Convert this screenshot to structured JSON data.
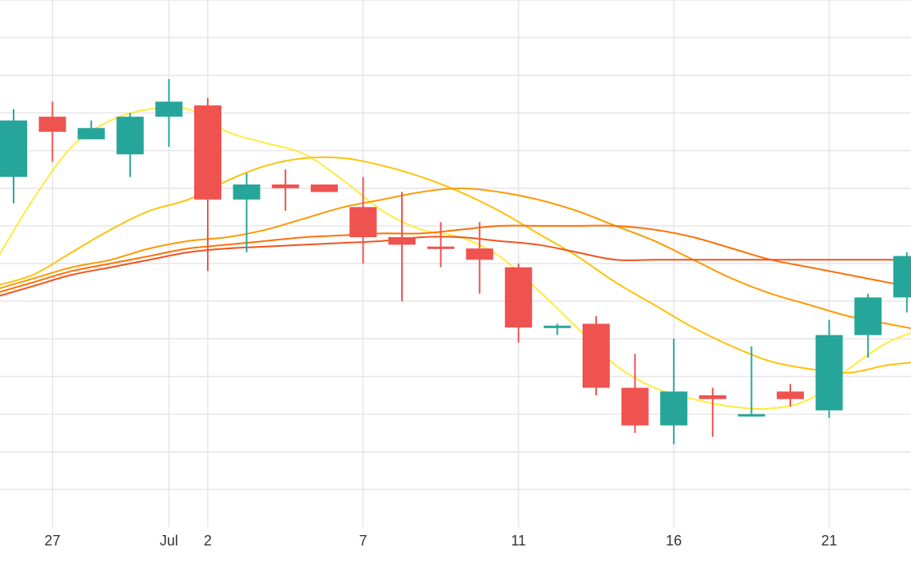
{
  "chart_data": {
    "type": "candlestick",
    "x_axis": {
      "ticks": [
        {
          "label": "27",
          "index": 1
        },
        {
          "label": "Jul",
          "index": 4
        },
        {
          "label": "2",
          "index": 5
        },
        {
          "label": "7",
          "index": 9
        },
        {
          "label": "11",
          "index": 13
        },
        {
          "label": "16",
          "index": 17
        },
        {
          "label": "21",
          "index": 21
        }
      ]
    },
    "y_axis": {
      "range": [
        0,
        14
      ],
      "gridlines": [
        1,
        2,
        3,
        4,
        5,
        6,
        7,
        8,
        9,
        10,
        11,
        12,
        13,
        14
      ]
    },
    "grid": true,
    "colors": {
      "up": "#26a69a",
      "down": "#ef5350",
      "grid": "#e6e6e6",
      "text": "#333333"
    },
    "candles": [
      {
        "i": 0,
        "open": 9.3,
        "high": 11.1,
        "low": 8.6,
        "close": 10.8
      },
      {
        "i": 1,
        "open": 10.9,
        "high": 11.3,
        "low": 9.7,
        "close": 10.5
      },
      {
        "i": 2,
        "open": 10.3,
        "high": 10.8,
        "low": 10.3,
        "close": 10.6
      },
      {
        "i": 3,
        "open": 9.9,
        "high": 11.0,
        "low": 9.3,
        "close": 10.9
      },
      {
        "i": 4,
        "open": 10.9,
        "high": 11.9,
        "low": 10.1,
        "close": 11.3
      },
      {
        "i": 5,
        "open": 11.2,
        "high": 11.4,
        "low": 6.8,
        "close": 8.7
      },
      {
        "i": 6,
        "open": 8.7,
        "high": 9.4,
        "low": 7.3,
        "close": 9.1
      },
      {
        "i": 7,
        "open": 9.1,
        "high": 9.5,
        "low": 8.4,
        "close": 9.0
      },
      {
        "i": 8,
        "open": 9.1,
        "high": 9.1,
        "low": 8.9,
        "close": 8.9
      },
      {
        "i": 9,
        "open": 8.5,
        "high": 9.3,
        "low": 7.0,
        "close": 7.7
      },
      {
        "i": 10,
        "open": 7.7,
        "high": 8.9,
        "low": 6.0,
        "close": 7.5
      },
      {
        "i": 11,
        "open": 7.45,
        "high": 8.1,
        "low": 6.9,
        "close": 7.4
      },
      {
        "i": 12,
        "open": 7.4,
        "high": 8.1,
        "low": 6.2,
        "close": 7.1
      },
      {
        "i": 13,
        "open": 6.9,
        "high": 7.0,
        "low": 4.9,
        "close": 5.3
      },
      {
        "i": 14,
        "open": 5.3,
        "high": 5.4,
        "low": 5.1,
        "close": 5.35
      },
      {
        "i": 15,
        "open": 5.4,
        "high": 5.6,
        "low": 3.5,
        "close": 3.7
      },
      {
        "i": 16,
        "open": 3.7,
        "high": 4.6,
        "low": 2.5,
        "close": 2.7
      },
      {
        "i": 17,
        "open": 2.7,
        "high": 5.0,
        "low": 2.2,
        "close": 3.6
      },
      {
        "i": 18,
        "open": 3.5,
        "high": 3.7,
        "low": 2.4,
        "close": 3.4
      },
      {
        "i": 19,
        "open": 3.0,
        "high": 4.8,
        "low": 3.0,
        "close": 3.0
      },
      {
        "i": 20,
        "open": 3.6,
        "high": 3.8,
        "low": 3.2,
        "close": 3.4
      },
      {
        "i": 21,
        "open": 3.1,
        "high": 5.5,
        "low": 2.9,
        "close": 5.1
      },
      {
        "i": 22,
        "open": 5.1,
        "high": 6.2,
        "low": 4.5,
        "close": 6.1
      },
      {
        "i": 23,
        "open": 6.1,
        "high": 7.3,
        "low": 5.7,
        "close": 7.2
      }
    ],
    "moving_averages": [
      {
        "color": "#ffeb3b",
        "values": [
          {
            "x": -0.5,
            "y": 7.0
          },
          {
            "x": 0.5,
            "y": 8.7
          },
          {
            "x": 1.5,
            "y": 10.1
          },
          {
            "x": 2.5,
            "y": 10.8
          },
          {
            "x": 3.5,
            "y": 11.1
          },
          {
            "x": 4.5,
            "y": 11.1
          },
          {
            "x": 5.5,
            "y": 10.5
          },
          {
            "x": 6.5,
            "y": 10.2
          },
          {
            "x": 7.5,
            "y": 9.9
          },
          {
            "x": 8.5,
            "y": 9.2
          },
          {
            "x": 9.5,
            "y": 8.4
          },
          {
            "x": 10.5,
            "y": 7.9
          },
          {
            "x": 11.5,
            "y": 7.7
          },
          {
            "x": 12.5,
            "y": 7.2
          },
          {
            "x": 13.5,
            "y": 6.3
          },
          {
            "x": 14.5,
            "y": 5.3
          },
          {
            "x": 15.5,
            "y": 4.3
          },
          {
            "x": 16.5,
            "y": 3.7
          },
          {
            "x": 17.5,
            "y": 3.4
          },
          {
            "x": 18.5,
            "y": 3.2
          },
          {
            "x": 19.5,
            "y": 3.15
          },
          {
            "x": 20.5,
            "y": 3.4
          },
          {
            "x": 21.5,
            "y": 4.2
          },
          {
            "x": 22.5,
            "y": 4.9
          },
          {
            "x": 23.5,
            "y": 5.3
          }
        ]
      },
      {
        "color": "#ffc107",
        "values": [
          {
            "x": -0.5,
            "y": 6.4
          },
          {
            "x": 0.5,
            "y": 6.7
          },
          {
            "x": 1.5,
            "y": 7.3
          },
          {
            "x": 2.5,
            "y": 7.9
          },
          {
            "x": 3.5,
            "y": 8.4
          },
          {
            "x": 4.5,
            "y": 8.7
          },
          {
            "x": 5.5,
            "y": 9.2
          },
          {
            "x": 6.5,
            "y": 9.6
          },
          {
            "x": 7.5,
            "y": 9.8
          },
          {
            "x": 8.5,
            "y": 9.8
          },
          {
            "x": 9.5,
            "y": 9.6
          },
          {
            "x": 10.5,
            "y": 9.3
          },
          {
            "x": 11.5,
            "y": 8.9
          },
          {
            "x": 12.5,
            "y": 8.4
          },
          {
            "x": 13.5,
            "y": 7.8
          },
          {
            "x": 14.5,
            "y": 7.2
          },
          {
            "x": 15.5,
            "y": 6.5
          },
          {
            "x": 16.5,
            "y": 5.9
          },
          {
            "x": 17.5,
            "y": 5.3
          },
          {
            "x": 18.5,
            "y": 4.8
          },
          {
            "x": 19.5,
            "y": 4.4
          },
          {
            "x": 20.5,
            "y": 4.2
          },
          {
            "x": 21.5,
            "y": 4.1
          },
          {
            "x": 22.5,
            "y": 4.3
          },
          {
            "x": 23.5,
            "y": 4.4
          }
        ]
      },
      {
        "color": "#ff9800",
        "values": [
          {
            "x": -0.5,
            "y": 6.3
          },
          {
            "x": 0.5,
            "y": 6.6
          },
          {
            "x": 1.5,
            "y": 6.9
          },
          {
            "x": 2.5,
            "y": 7.1
          },
          {
            "x": 3.5,
            "y": 7.4
          },
          {
            "x": 4.5,
            "y": 7.6
          },
          {
            "x": 5.5,
            "y": 7.7
          },
          {
            "x": 6.5,
            "y": 7.9
          },
          {
            "x": 7.5,
            "y": 8.2
          },
          {
            "x": 8.5,
            "y": 8.5
          },
          {
            "x": 9.5,
            "y": 8.7
          },
          {
            "x": 10.5,
            "y": 8.9
          },
          {
            "x": 11.5,
            "y": 9.0
          },
          {
            "x": 12.5,
            "y": 8.9
          },
          {
            "x": 13.5,
            "y": 8.7
          },
          {
            "x": 14.5,
            "y": 8.4
          },
          {
            "x": 15.5,
            "y": 8.0
          },
          {
            "x": 16.5,
            "y": 7.6
          },
          {
            "x": 17.5,
            "y": 7.1
          },
          {
            "x": 18.5,
            "y": 6.6
          },
          {
            "x": 19.5,
            "y": 6.2
          },
          {
            "x": 20.5,
            "y": 5.9
          },
          {
            "x": 21.5,
            "y": 5.6
          },
          {
            "x": 22.5,
            "y": 5.4
          },
          {
            "x": 23.5,
            "y": 5.2
          }
        ]
      },
      {
        "color": "#ff6f00",
        "values": [
          {
            "x": -0.5,
            "y": 6.2
          },
          {
            "x": 0.5,
            "y": 6.5
          },
          {
            "x": 1.5,
            "y": 6.8
          },
          {
            "x": 2.5,
            "y": 7.0
          },
          {
            "x": 3.5,
            "y": 7.2
          },
          {
            "x": 4.5,
            "y": 7.4
          },
          {
            "x": 5.5,
            "y": 7.5
          },
          {
            "x": 6.5,
            "y": 7.6
          },
          {
            "x": 7.5,
            "y": 7.7
          },
          {
            "x": 8.5,
            "y": 7.75
          },
          {
            "x": 9.5,
            "y": 7.8
          },
          {
            "x": 10.5,
            "y": 7.8
          },
          {
            "x": 11.5,
            "y": 7.9
          },
          {
            "x": 12.5,
            "y": 8.0
          },
          {
            "x": 13.5,
            "y": 8.0
          },
          {
            "x": 14.5,
            "y": 8.0
          },
          {
            "x": 15.5,
            "y": 8.0
          },
          {
            "x": 16.5,
            "y": 7.9
          },
          {
            "x": 17.5,
            "y": 7.7
          },
          {
            "x": 18.5,
            "y": 7.4
          },
          {
            "x": 19.5,
            "y": 7.1
          },
          {
            "x": 20.5,
            "y": 6.9
          },
          {
            "x": 21.5,
            "y": 6.7
          },
          {
            "x": 22.5,
            "y": 6.5
          },
          {
            "x": 23.5,
            "y": 6.3
          }
        ]
      },
      {
        "color": "#f4511e",
        "values": [
          {
            "x": -0.5,
            "y": 6.1
          },
          {
            "x": 0.5,
            "y": 6.4
          },
          {
            "x": 1.5,
            "y": 6.7
          },
          {
            "x": 2.5,
            "y": 6.9
          },
          {
            "x": 3.5,
            "y": 7.1
          },
          {
            "x": 4.5,
            "y": 7.3
          },
          {
            "x": 5.5,
            "y": 7.4
          },
          {
            "x": 6.5,
            "y": 7.45
          },
          {
            "x": 7.5,
            "y": 7.5
          },
          {
            "x": 8.5,
            "y": 7.55
          },
          {
            "x": 9.5,
            "y": 7.6
          },
          {
            "x": 10.5,
            "y": 7.7
          },
          {
            "x": 11.5,
            "y": 7.7
          },
          {
            "x": 12.5,
            "y": 7.6
          },
          {
            "x": 13.5,
            "y": 7.5
          },
          {
            "x": 14.5,
            "y": 7.3
          },
          {
            "x": 15.5,
            "y": 7.1
          },
          {
            "x": 16.5,
            "y": 7.1
          },
          {
            "x": 17.5,
            "y": 7.1
          },
          {
            "x": 18.5,
            "y": 7.1
          },
          {
            "x": 19.5,
            "y": 7.1
          },
          {
            "x": 20.5,
            "y": 7.1
          },
          {
            "x": 21.5,
            "y": 7.1
          },
          {
            "x": 22.5,
            "y": 7.1
          },
          {
            "x": 23.5,
            "y": 7.1
          }
        ]
      }
    ]
  }
}
